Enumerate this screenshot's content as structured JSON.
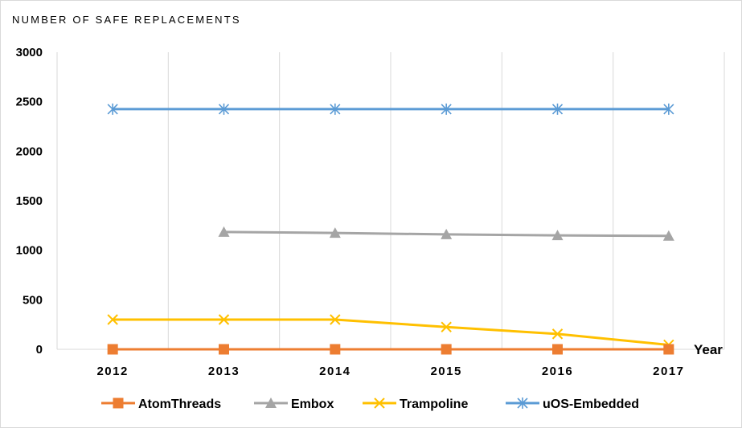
{
  "chart_data": {
    "type": "line",
    "title": "NUMBER OF SAFE REPLACEMENTS",
    "xlabel": "Year",
    "ylabel": "",
    "categories": [
      "2012",
      "2013",
      "2014",
      "2015",
      "2016",
      "2017"
    ],
    "ylim": [
      0,
      3000
    ],
    "yticks": [
      "0",
      "500",
      "1000",
      "1500",
      "2000",
      "2500",
      "3000"
    ],
    "grid": "vertical",
    "legend": "bottom",
    "series": [
      {
        "name": "AtomThreads",
        "values": [
          0,
          0,
          0,
          0,
          0,
          0
        ],
        "color": "#ED7D31",
        "marker": "square"
      },
      {
        "name": "Embox",
        "values": [
          null,
          1185,
          1175,
          1160,
          1150,
          1145
        ],
        "color": "#A5A5A5",
        "marker": "triangle"
      },
      {
        "name": "Trampoline",
        "values": [
          300,
          300,
          300,
          225,
          155,
          45
        ],
        "color": "#FFC000",
        "marker": "x"
      },
      {
        "name": "uOS-Embedded",
        "values": [
          2425,
          2425,
          2425,
          2425,
          2425,
          2425
        ],
        "color": "#5B9BD5",
        "marker": "asterisk"
      }
    ]
  }
}
